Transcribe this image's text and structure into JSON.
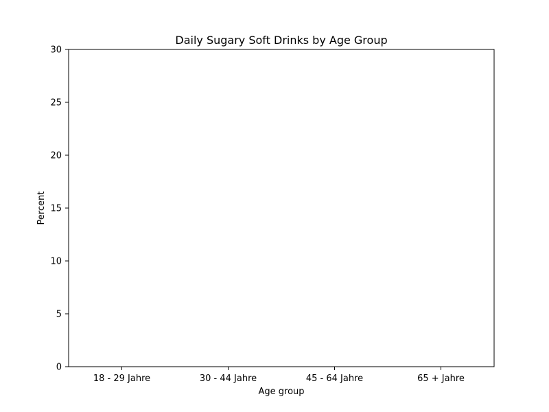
{
  "chart_data": {
    "type": "bar",
    "title": "Daily Sugary Soft Drinks by Age Group",
    "xlabel": "Age group",
    "ylabel": "Percent",
    "categories": [
      "18 - 29 Jahre",
      "30 - 44 Jahre",
      "45 - 64 Jahre",
      "65 + Jahre"
    ],
    "values": [
      null,
      null,
      null,
      null
    ],
    "ylim": [
      0,
      30
    ],
    "yticks": [
      0,
      5,
      10,
      15,
      20,
      25,
      30
    ],
    "grid": false,
    "colors": {
      "frame": "#000000",
      "background": "#ffffff",
      "text": "#000000"
    }
  }
}
